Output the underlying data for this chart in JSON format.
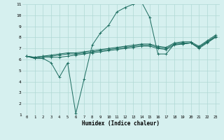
{
  "xlabel": "Humidex (Indice chaleur)",
  "ylabel": "",
  "bg_color": "#d6f0ef",
  "grid_color": "#b0d8d5",
  "line_color": "#1a6b5e",
  "xlim": [
    -0.5,
    23.5
  ],
  "ylim": [
    1,
    11
  ],
  "xticks": [
    0,
    1,
    2,
    3,
    4,
    5,
    6,
    7,
    8,
    9,
    10,
    11,
    12,
    13,
    14,
    15,
    16,
    17,
    18,
    19,
    20,
    21,
    22,
    23
  ],
  "yticks": [
    1,
    2,
    3,
    4,
    5,
    6,
    7,
    8,
    9,
    10,
    11
  ],
  "lines": [
    {
      "x": [
        0,
        1,
        2,
        3,
        4,
        5,
        6,
        7,
        8,
        9,
        10,
        11,
        12,
        13,
        14,
        15,
        16,
        17,
        18,
        19,
        20,
        21,
        22,
        23
      ],
      "y": [
        6.3,
        6.1,
        6.1,
        5.7,
        4.4,
        5.7,
        1.1,
        4.2,
        7.3,
        8.4,
        9.1,
        10.3,
        10.7,
        11.0,
        11.2,
        9.8,
        6.5,
        6.5,
        7.4,
        7.4,
        7.5,
        7.0,
        7.5,
        8.0
      ]
    },
    {
      "x": [
        0,
        1,
        2,
        3,
        4,
        5,
        6,
        7,
        8,
        9,
        10,
        11,
        12,
        13,
        14,
        15,
        16,
        17,
        18,
        19,
        20,
        21,
        22,
        23
      ],
      "y": [
        6.3,
        6.1,
        6.2,
        6.2,
        6.2,
        6.3,
        6.4,
        6.5,
        6.6,
        6.7,
        6.8,
        6.9,
        7.0,
        7.1,
        7.2,
        7.2,
        7.0,
        6.9,
        7.3,
        7.4,
        7.5,
        7.1,
        7.6,
        8.0
      ]
    },
    {
      "x": [
        0,
        1,
        2,
        3,
        4,
        5,
        6,
        7,
        8,
        9,
        10,
        11,
        12,
        13,
        14,
        15,
        16,
        17,
        18,
        19,
        20,
        21,
        22,
        23
      ],
      "y": [
        6.3,
        6.2,
        6.3,
        6.3,
        6.4,
        6.5,
        6.5,
        6.6,
        6.7,
        6.8,
        6.9,
        7.0,
        7.1,
        7.2,
        7.3,
        7.3,
        7.1,
        7.0,
        7.4,
        7.5,
        7.5,
        7.1,
        7.6,
        8.1
      ]
    },
    {
      "x": [
        0,
        1,
        2,
        3,
        4,
        5,
        6,
        7,
        8,
        9,
        10,
        11,
        12,
        13,
        14,
        15,
        16,
        17,
        18,
        19,
        20,
        21,
        22,
        23
      ],
      "y": [
        6.3,
        6.2,
        6.3,
        6.4,
        6.5,
        6.6,
        6.6,
        6.7,
        6.8,
        6.9,
        7.0,
        7.1,
        7.2,
        7.3,
        7.4,
        7.4,
        7.2,
        7.1,
        7.5,
        7.6,
        7.6,
        7.2,
        7.7,
        8.2
      ]
    }
  ]
}
